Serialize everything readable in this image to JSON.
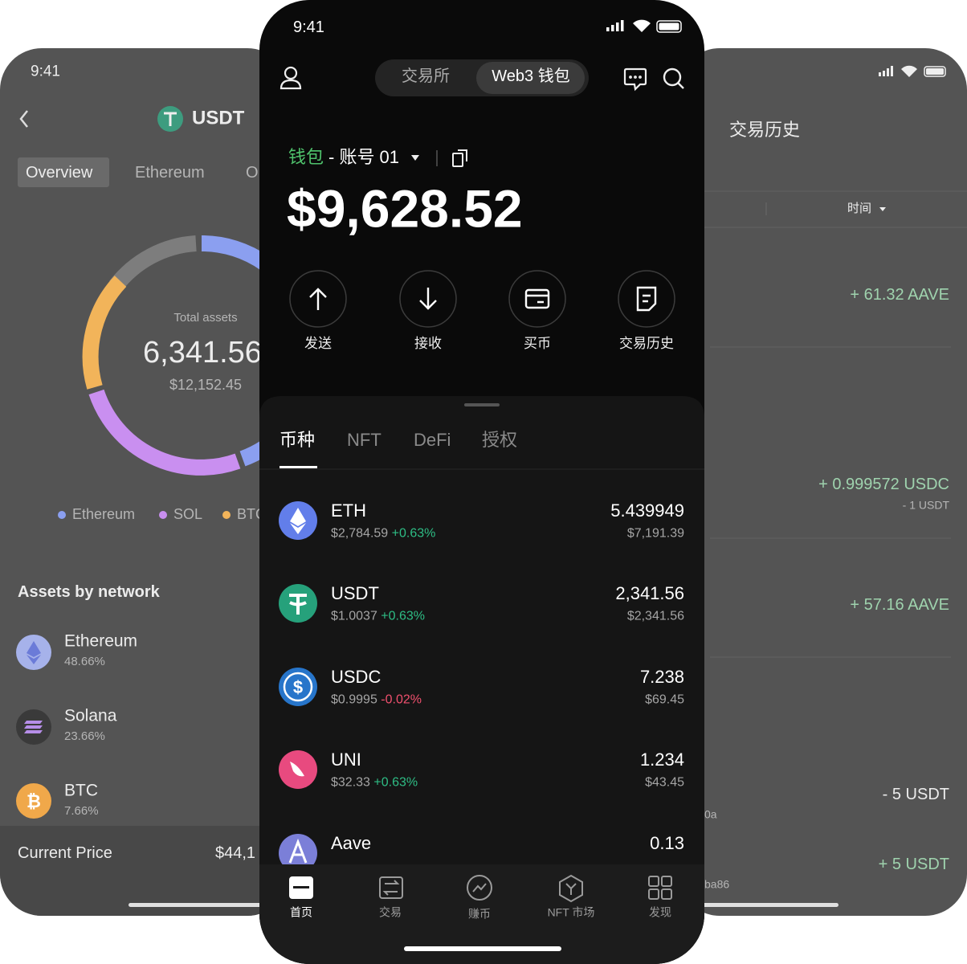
{
  "left_screen": {
    "status_time": "9:41",
    "title": "USDT",
    "tabs": [
      "Overview",
      "Ethereum",
      "O"
    ],
    "total_label": "Total assets",
    "total_amount": "6,341.56",
    "total_value": "$12,152.45",
    "legend": [
      "Ethereum",
      "SOL",
      "BTC"
    ],
    "section_title": "Assets by network",
    "networks": [
      {
        "name": "Ethereum",
        "share": "48.66%"
      },
      {
        "name": "Solana",
        "share": "23.66%"
      },
      {
        "name": "BTC",
        "share": "7.66%"
      }
    ],
    "price_label": "Current Price",
    "price_value": "$44,1"
  },
  "main_screen": {
    "status_time": "9:41",
    "mode_tabs": [
      "交易所",
      "Web3 钱包"
    ],
    "wallet_label": "钱包",
    "account": "- 账号 01",
    "balance": "$9,628.52",
    "actions": [
      "发送",
      "接收",
      "买币",
      "交易历史"
    ],
    "asset_tabs": [
      "币种",
      "NFT",
      "DeFi",
      "授权"
    ],
    "tokens": [
      {
        "symbol": "ETH",
        "price": "$2,784.59",
        "change": "+0.63%",
        "amount": "5.439949",
        "value": "$7,191.39"
      },
      {
        "symbol": "USDT",
        "price": "$1.0037",
        "change": "+0.63%",
        "amount": "2,341.56",
        "value": "$2,341.56"
      },
      {
        "symbol": "USDC",
        "price": "$0.9995",
        "change": "-0.02%",
        "amount": "7.238",
        "value": "$69.45"
      },
      {
        "symbol": "UNI",
        "price": "$32.33",
        "change": "+0.63%",
        "amount": "1.234",
        "value": "$43.45"
      },
      {
        "symbol": "Aave",
        "amount": "0.13"
      }
    ],
    "nav": [
      "首页",
      "交易",
      "赚币",
      "NFT 市场",
      "发现"
    ]
  },
  "right_screen": {
    "title": "交易历史",
    "filter": "时间",
    "entries": [
      {
        "amount": "+ 61.32 AAVE"
      },
      {
        "amount": "+ 0.999572 USDC",
        "fee": "- 1 USDT"
      },
      {
        "amount": "+ 57.16 AAVE"
      },
      {
        "amount": "- 5 USDT"
      },
      {
        "amount": "+ 5 USDT"
      }
    ],
    "fragments": [
      "0a",
      "ba86"
    ]
  }
}
